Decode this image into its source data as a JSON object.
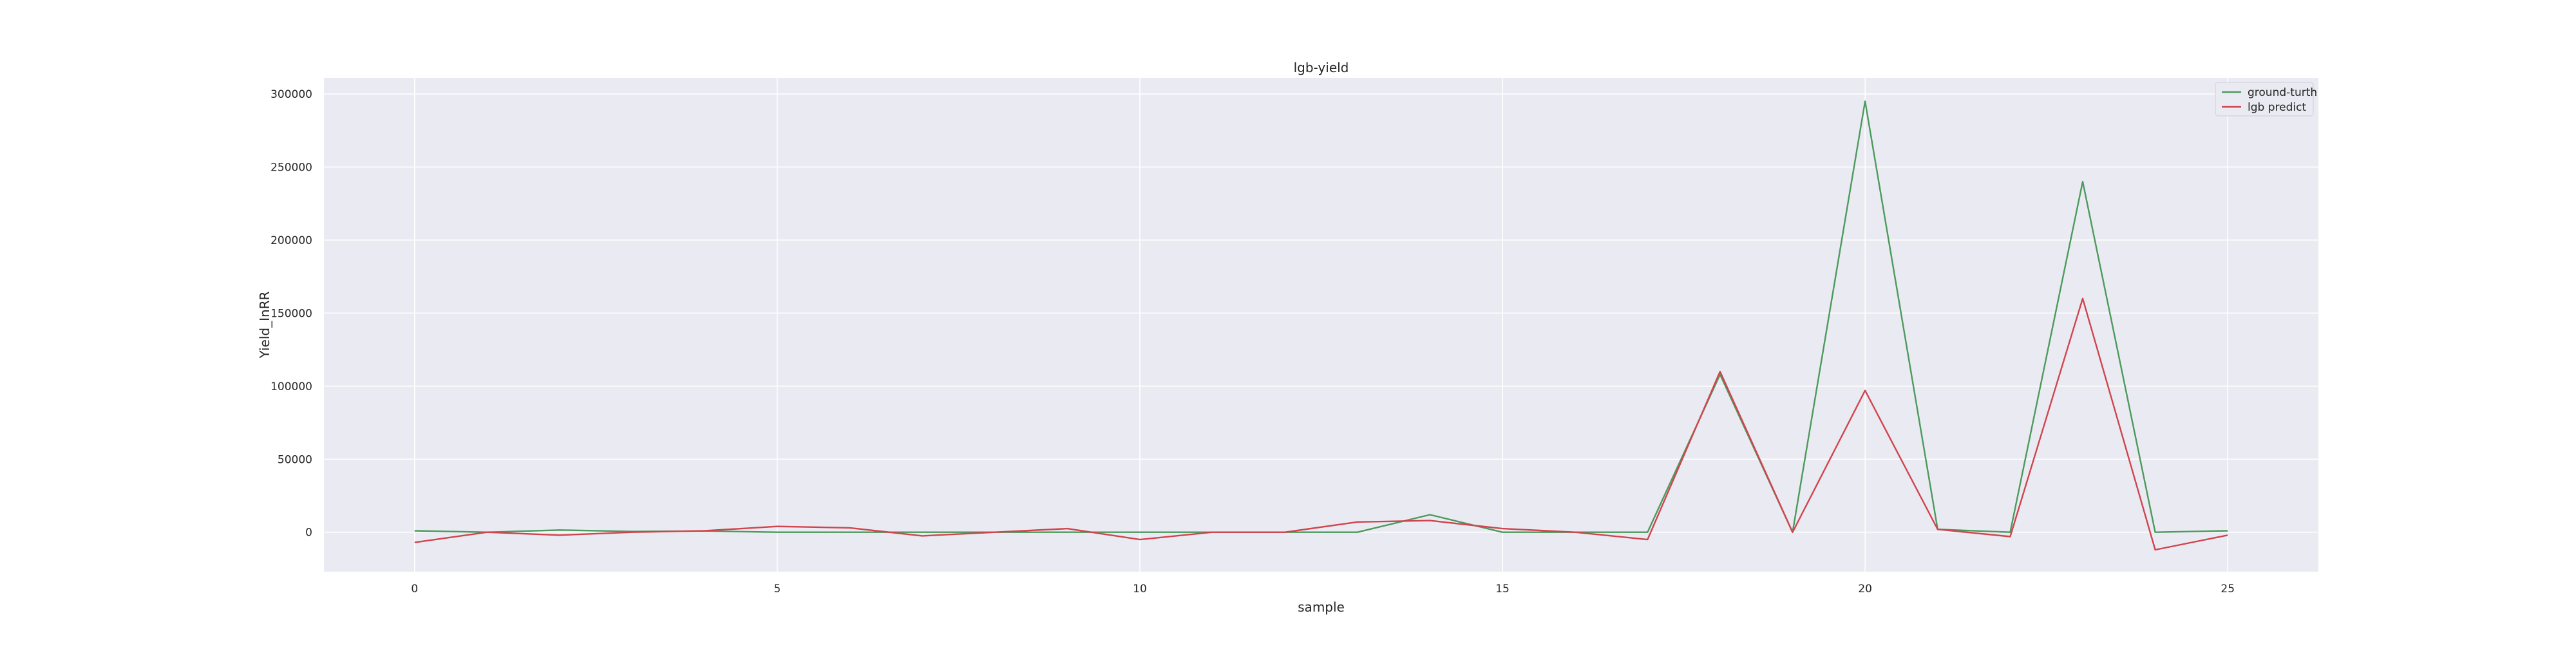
{
  "chart_data": {
    "type": "line",
    "title": "lgb-yield",
    "xlabel": "sample",
    "ylabel": "Yield_InRR",
    "x": [
      0,
      1,
      2,
      3,
      4,
      5,
      6,
      7,
      8,
      9,
      10,
      11,
      12,
      13,
      14,
      15,
      16,
      17,
      18,
      19,
      20,
      21,
      22,
      23,
      24,
      25
    ],
    "series": [
      {
        "name": "ground-turth",
        "color": "#4c9a5c",
        "values": [
          1000,
          0,
          1500,
          500,
          800,
          0,
          0,
          0,
          0,
          0,
          0,
          0,
          0,
          0,
          12000,
          0,
          0,
          0,
          108000,
          0,
          295000,
          2000,
          0,
          240000,
          0,
          1000
        ]
      },
      {
        "name": "lgb predict",
        "color": "#d0444d",
        "values": [
          -7000,
          0,
          -2000,
          0,
          1000,
          4000,
          3000,
          -2500,
          0,
          2500,
          -5000,
          0,
          0,
          7000,
          8000,
          2500,
          0,
          -5000,
          110000,
          0,
          97000,
          2000,
          -3000,
          160000,
          -12000,
          -2000
        ]
      }
    ],
    "xlim": [
      -1.25,
      26.25
    ],
    "ylim": [
      -27000,
      311000
    ],
    "xticks": [
      0,
      5,
      10,
      15,
      20,
      25
    ],
    "yticks": [
      0,
      50000,
      100000,
      150000,
      200000,
      250000,
      300000
    ],
    "grid": true,
    "legend_position": "top-right",
    "background": "#eaeaf2",
    "grid_color": "#ffffff"
  }
}
